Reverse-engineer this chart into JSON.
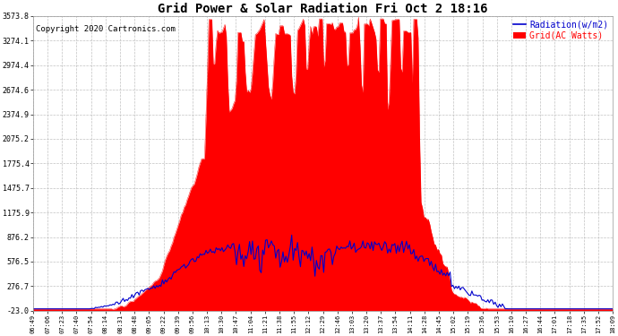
{
  "title": "Grid Power & Solar Radiation Fri Oct 2 18:16",
  "copyright": "Copyright 2020 Cartronics.com",
  "legend_radiation": "Radiation(w/m2)",
  "legend_grid": "Grid(AC Watts)",
  "background_color": "#ffffff",
  "plot_bg_color": "#ffffff",
  "grid_color": "#bbbbbb",
  "radiation_fill_color": "#ff0000",
  "grid_line_color": "#0000cc",
  "yticks": [
    -23.0,
    276.7,
    576.5,
    876.2,
    1175.9,
    1475.7,
    1775.4,
    2075.2,
    2374.9,
    2674.6,
    2974.4,
    3274.1,
    3573.8
  ],
  "x_labels": [
    "06:49",
    "07:06",
    "07:23",
    "07:40",
    "07:54",
    "08:14",
    "08:31",
    "08:48",
    "09:05",
    "09:22",
    "09:39",
    "09:56",
    "10:13",
    "10:30",
    "10:47",
    "11:04",
    "11:21",
    "11:38",
    "11:55",
    "12:12",
    "12:29",
    "12:46",
    "13:03",
    "13:20",
    "13:37",
    "13:54",
    "14:11",
    "14:28",
    "14:45",
    "15:02",
    "15:19",
    "15:36",
    "15:53",
    "16:10",
    "16:27",
    "16:44",
    "17:01",
    "17:18",
    "17:35",
    "17:52",
    "18:09"
  ],
  "n_points": 400,
  "ymin": -23.0,
  "ymax": 3573.8
}
